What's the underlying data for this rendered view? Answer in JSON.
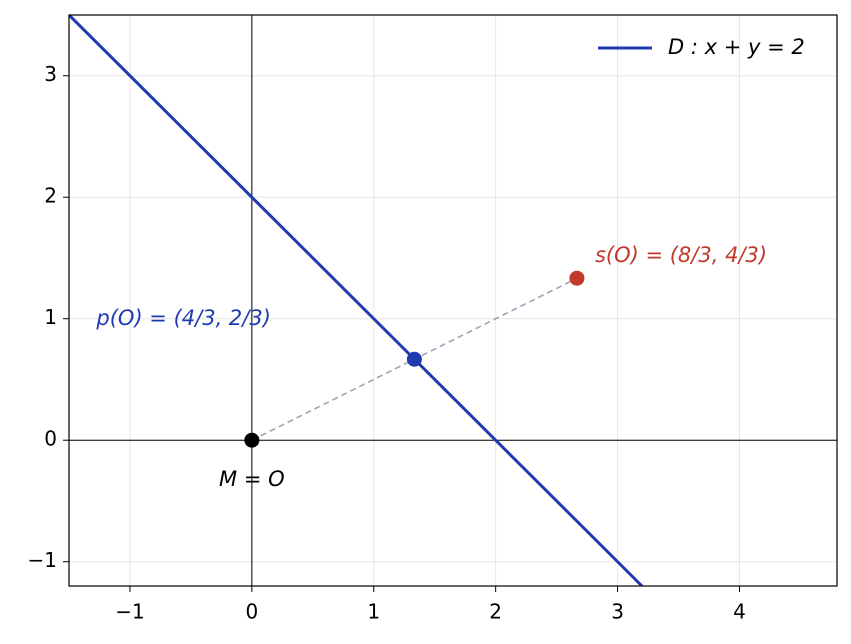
{
  "chart_data": {
    "type": "line",
    "xlim": [
      -1.5,
      4.8
    ],
    "ylim": [
      -1.2,
      3.5
    ],
    "xticks": [
      {
        "value": -1,
        "label": "−1"
      },
      0,
      1,
      2,
      3,
      4
    ],
    "yticks": [
      {
        "value": -1,
        "label": "−1"
      },
      0,
      1,
      2,
      3
    ],
    "grid": true,
    "legend": "upper right",
    "series": [
      {
        "name": "D : x + y = 2",
        "color": "#1f3bb0",
        "x": [
          -1.5,
          3.2
        ],
        "values": [
          3.5,
          -1.2
        ]
      }
    ],
    "points": [
      {
        "x": 0,
        "y": 0,
        "color": "#000000",
        "label": "M = O"
      },
      {
        "x": 1.3333,
        "y": 0.6667,
        "color": "#1f3bb0",
        "label": "p(O) = (4/3, 2/3)"
      },
      {
        "x": 2.6667,
        "y": 1.3333,
        "color": "#c0392b",
        "label": "s(O) = (8/3, 4/3)"
      }
    ],
    "segment_color": "#a0a3b5"
  }
}
